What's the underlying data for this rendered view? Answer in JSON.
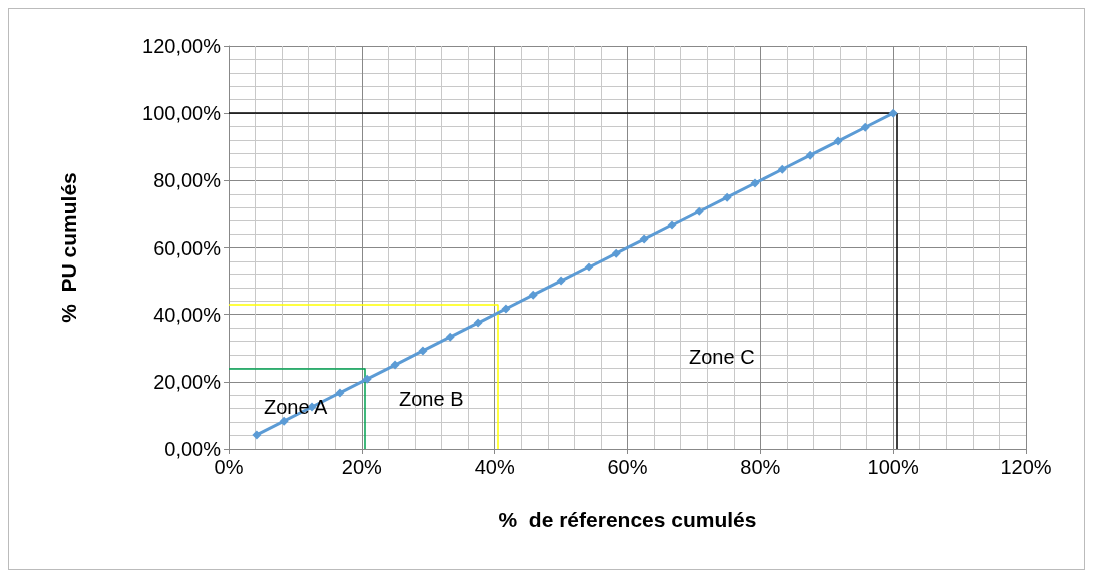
{
  "chart_data": {
    "type": "line",
    "xlabel": "%  de réferences cumulés",
    "ylabel": "%  PU cumulés",
    "x": [
      4.2,
      8.3,
      12.5,
      16.7,
      20.8,
      25,
      29.2,
      33.3,
      37.5,
      41.7,
      45.8,
      50,
      54.2,
      58.3,
      62.5,
      66.7,
      70.8,
      75,
      79.2,
      83.3,
      87.5,
      91.7,
      95.8,
      100
    ],
    "series": [
      {
        "color": "#5b9bd5",
        "values": [
          4.2,
          8.3,
          12.5,
          16.7,
          20.8,
          25,
          29.2,
          33.3,
          37.5,
          41.7,
          45.8,
          50,
          54.2,
          58.3,
          62.5,
          66.7,
          70.8,
          75,
          79.2,
          83.3,
          87.5,
          91.7,
          95.8,
          100
        ]
      }
    ],
    "xlim": [
      0,
      120
    ],
    "ylim": [
      0,
      120
    ],
    "xticks": [
      {
        "value": 0,
        "label": "0%"
      },
      {
        "value": 20,
        "label": "20%"
      },
      {
        "value": 40,
        "label": "40%"
      },
      {
        "value": 60,
        "label": "60%"
      },
      {
        "value": 80,
        "label": "80%"
      },
      {
        "value": 100,
        "label": "100%"
      },
      {
        "value": 120,
        "label": "120%"
      }
    ],
    "yticks": [
      {
        "value": 0,
        "label": "0,00%"
      },
      {
        "value": 20,
        "label": "20,00%"
      },
      {
        "value": 40,
        "label": "40,00%"
      },
      {
        "value": 60,
        "label": "60,00%"
      },
      {
        "value": 80,
        "label": "80,00%"
      },
      {
        "value": 100,
        "label": "100,00%"
      },
      {
        "value": 120,
        "label": "120,00%"
      }
    ],
    "ref_lines": [
      {
        "axis": "y",
        "value": 24,
        "color": "#00a050"
      },
      {
        "axis": "x",
        "value": 20.5,
        "color": "#00a050"
      },
      {
        "axis": "y",
        "value": 43,
        "color": "#ffff00"
      },
      {
        "axis": "x",
        "value": 40.5,
        "color": "#ffff00"
      },
      {
        "axis": "y",
        "value": 100,
        "color": "#000000"
      },
      {
        "axis": "x",
        "value": 100.5,
        "color": "#000000"
      }
    ],
    "annotations": [
      "Zone A",
      "Zone B",
      "Zone C"
    ],
    "grid": true,
    "marker": "diamond",
    "line_style": "solid"
  }
}
